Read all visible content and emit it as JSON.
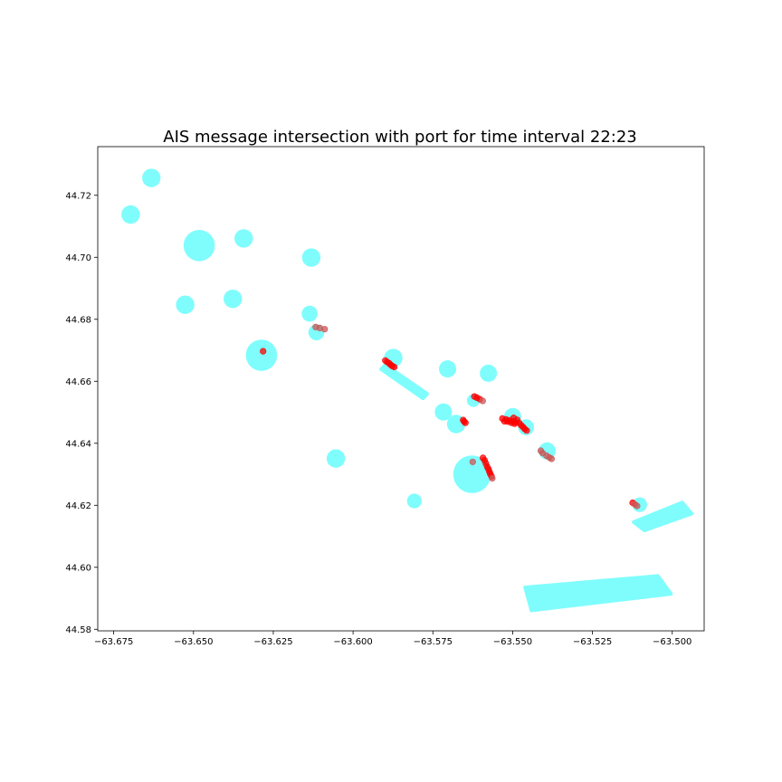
{
  "chart_data": {
    "type": "scatter",
    "title": "AIS message intersection with port for time interval 22:23",
    "xlabel": "",
    "ylabel": "",
    "xlim": [
      -63.68,
      -63.49
    ],
    "ylim": [
      44.5795,
      44.7357
    ],
    "grid": false,
    "x_ticks": [
      -63.675,
      -63.65,
      -63.625,
      -63.6,
      -63.575,
      -63.55,
      -63.525,
      -63.5
    ],
    "x_tick_labels": [
      "−63.675",
      "−63.650",
      "−63.625",
      "−63.600",
      "−63.575",
      "−63.550",
      "−63.525",
      "−63.500"
    ],
    "y_ticks": [
      44.58,
      44.6,
      44.62,
      44.64,
      44.66,
      44.68,
      44.7,
      44.72
    ],
    "y_tick_labels": [
      "44.58",
      "44.60",
      "44.62",
      "44.64",
      "44.66",
      "44.68",
      "44.70",
      "44.72"
    ],
    "colors": {
      "port": "#7ffdfd",
      "ais": "#ff0000",
      "ais_faded": "#cc5555"
    },
    "port_circles": [
      {
        "x": -63.6632,
        "y": 44.7256,
        "r_deg": 0.0029
      },
      {
        "x": -63.6697,
        "y": 44.7138,
        "r_deg": 0.0029
      },
      {
        "x": -63.6482,
        "y": 44.7038,
        "r_deg": 0.0049
      },
      {
        "x": -63.6343,
        "y": 44.7061,
        "r_deg": 0.0029
      },
      {
        "x": -63.6131,
        "y": 44.6999,
        "r_deg": 0.0029
      },
      {
        "x": -63.6526,
        "y": 44.6847,
        "r_deg": 0.0029
      },
      {
        "x": -63.6377,
        "y": 44.6866,
        "r_deg": 0.0029
      },
      {
        "x": -63.6136,
        "y": 44.6818,
        "r_deg": 0.0025
      },
      {
        "x": -63.6115,
        "y": 44.6758,
        "r_deg": 0.0025
      },
      {
        "x": -63.6287,
        "y": 44.6684,
        "r_deg": 0.0049
      },
      {
        "x": -63.5874,
        "y": 44.6675,
        "r_deg": 0.0029
      },
      {
        "x": -63.5704,
        "y": 44.664,
        "r_deg": 0.0027
      },
      {
        "x": -63.5576,
        "y": 44.6626,
        "r_deg": 0.0027
      },
      {
        "x": -63.5623,
        "y": 44.6538,
        "r_deg": 0.002
      },
      {
        "x": -63.5717,
        "y": 44.6501,
        "r_deg": 0.0027
      },
      {
        "x": -63.5677,
        "y": 44.6462,
        "r_deg": 0.0029
      },
      {
        "x": -63.55,
        "y": 44.6486,
        "r_deg": 0.0027
      },
      {
        "x": -63.5458,
        "y": 44.6452,
        "r_deg": 0.0025
      },
      {
        "x": -63.5392,
        "y": 44.6375,
        "r_deg": 0.0027
      },
      {
        "x": -63.6054,
        "y": 44.6351,
        "r_deg": 0.0029
      },
      {
        "x": -63.5627,
        "y": 44.63,
        "r_deg": 0.0059
      },
      {
        "x": -63.5808,
        "y": 44.6214,
        "r_deg": 0.0023
      },
      {
        "x": -63.5102,
        "y": 44.6202,
        "r_deg": 0.0023
      }
    ],
    "port_polygons": [
      [
        [
          -63.5912,
          44.6639
        ],
        [
          -63.5899,
          44.6653
        ],
        [
          -63.5768,
          44.656
        ],
        [
          -63.5781,
          44.6545
        ]
      ],
      [
        [
          -63.5087,
          44.6119
        ],
        [
          -63.4939,
          44.6173
        ],
        [
          -63.4969,
          44.6209
        ],
        [
          -63.5121,
          44.6146
        ]
      ],
      [
        [
          -63.5461,
          44.5935
        ],
        [
          -63.5045,
          44.5972
        ],
        [
          -63.5004,
          44.5914
        ],
        [
          -63.5441,
          44.5861
        ]
      ]
    ],
    "ais_points": [
      {
        "x": -63.6282,
        "y": 44.6697,
        "faded": false
      },
      {
        "x": -63.6117,
        "y": 44.6775,
        "faded": true
      },
      {
        "x": -63.6104,
        "y": 44.6772,
        "faded": true
      },
      {
        "x": -63.6089,
        "y": 44.6768,
        "faded": true
      },
      {
        "x": -63.5899,
        "y": 44.6667,
        "faded": false
      },
      {
        "x": -63.5893,
        "y": 44.6662,
        "faded": false
      },
      {
        "x": -63.5887,
        "y": 44.6658,
        "faded": false
      },
      {
        "x": -63.5882,
        "y": 44.6653,
        "faded": false
      },
      {
        "x": -63.5877,
        "y": 44.6649,
        "faded": false
      },
      {
        "x": -63.5871,
        "y": 44.6646,
        "faded": false
      },
      {
        "x": -63.562,
        "y": 44.6551,
        "faded": false
      },
      {
        "x": -63.5612,
        "y": 44.6547,
        "faded": false
      },
      {
        "x": -63.5603,
        "y": 44.6542,
        "faded": false
      },
      {
        "x": -63.5594,
        "y": 44.6537,
        "faded": true
      },
      {
        "x": -63.5655,
        "y": 44.6475,
        "faded": false
      },
      {
        "x": -63.5652,
        "y": 44.647,
        "faded": false
      },
      {
        "x": -63.5648,
        "y": 44.6466,
        "faded": false
      },
      {
        "x": -63.5532,
        "y": 44.648,
        "faded": false
      },
      {
        "x": -63.5521,
        "y": 44.6477,
        "faded": false
      },
      {
        "x": -63.5511,
        "y": 44.6474,
        "faded": false
      },
      {
        "x": -63.55,
        "y": 44.6471,
        "faded": false
      },
      {
        "x": -63.5491,
        "y": 44.6468,
        "faded": false
      },
      {
        "x": -63.5526,
        "y": 44.6471,
        "faded": false
      },
      {
        "x": -63.5516,
        "y": 44.647,
        "faded": false
      },
      {
        "x": -63.5504,
        "y": 44.6466,
        "faded": false
      },
      {
        "x": -63.5494,
        "y": 44.6463,
        "faded": false
      },
      {
        "x": -63.5497,
        "y": 44.6482,
        "faded": false
      },
      {
        "x": -63.5486,
        "y": 44.6476,
        "faded": false
      },
      {
        "x": -63.5479,
        "y": 44.6465,
        "faded": false
      },
      {
        "x": -63.5473,
        "y": 44.6458,
        "faded": false
      },
      {
        "x": -63.5467,
        "y": 44.6452,
        "faded": false
      },
      {
        "x": -63.5462,
        "y": 44.6446,
        "faded": false
      },
      {
        "x": -63.5456,
        "y": 44.6441,
        "faded": false
      },
      {
        "x": -63.5412,
        "y": 44.6376,
        "faded": true
      },
      {
        "x": -63.5406,
        "y": 44.6368,
        "faded": true
      },
      {
        "x": -63.5394,
        "y": 44.636,
        "faded": true
      },
      {
        "x": -63.5385,
        "y": 44.6354,
        "faded": true
      },
      {
        "x": -63.5378,
        "y": 44.635,
        "faded": true
      },
      {
        "x": -63.5593,
        "y": 44.6353,
        "faded": false
      },
      {
        "x": -63.5588,
        "y": 44.6345,
        "faded": false
      },
      {
        "x": -63.5584,
        "y": 44.6335,
        "faded": false
      },
      {
        "x": -63.558,
        "y": 44.6325,
        "faded": false
      },
      {
        "x": -63.5576,
        "y": 44.6317,
        "faded": false
      },
      {
        "x": -63.5573,
        "y": 44.6309,
        "faded": false
      },
      {
        "x": -63.557,
        "y": 44.6301,
        "faded": false
      },
      {
        "x": -63.5566,
        "y": 44.6293,
        "faded": false
      },
      {
        "x": -63.5564,
        "y": 44.6287,
        "faded": true
      },
      {
        "x": -63.5625,
        "y": 44.634,
        "faded": true
      },
      {
        "x": -63.5124,
        "y": 44.6208,
        "faded": false
      },
      {
        "x": -63.5117,
        "y": 44.6203,
        "faded": true
      },
      {
        "x": -63.511,
        "y": 44.6198,
        "faded": true
      }
    ]
  }
}
